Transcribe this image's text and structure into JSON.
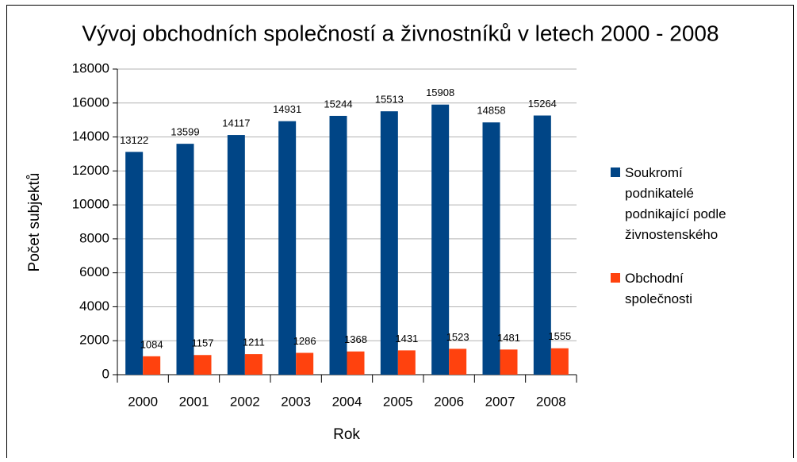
{
  "chart_data": {
    "type": "bar",
    "title": "Vývoj obchodních společností a živnostníků v letech 2000 - 2008",
    "x_label": "Rok",
    "y_label": "Počet subjektů",
    "categories": [
      "2000",
      "2001",
      "2002",
      "2003",
      "2004",
      "2005",
      "2006",
      "2007",
      "2008"
    ],
    "series": [
      {
        "name": "Soukromí podnikatelé podnikající podle živnostenského oprávnění",
        "color": "#004586",
        "values": [
          13122,
          13599,
          14117,
          14931,
          15244,
          15513,
          15908,
          14858,
          15264
        ]
      },
      {
        "name": "Obchodní společnosti",
        "color": "#ff420e",
        "values": [
          1084,
          1157,
          1211,
          1286,
          1368,
          1431,
          1523,
          1481,
          1555
        ]
      }
    ],
    "ylim": [
      0,
      18000
    ],
    "yticks": [
      0,
      2000,
      4000,
      6000,
      8000,
      10000,
      12000,
      14000,
      16000,
      18000
    ],
    "grid": true,
    "legend": "right"
  }
}
